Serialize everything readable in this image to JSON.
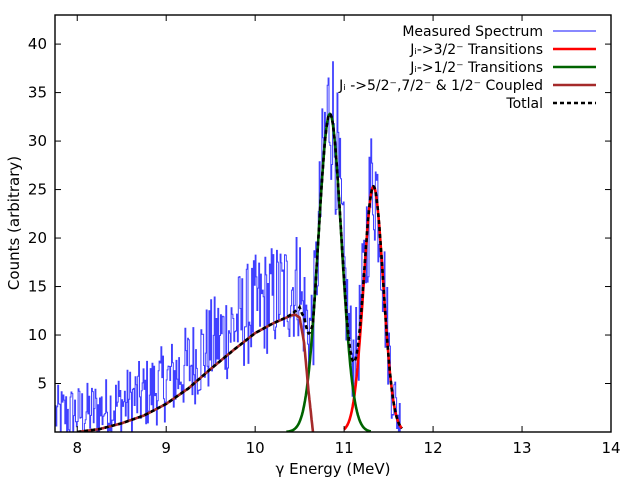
{
  "chart_data": {
    "type": "line",
    "title": "",
    "xlabel": "γ Energy (MeV)",
    "ylabel": "Counts (arbitrary)",
    "xlim": [
      7.75,
      14.0
    ],
    "ylim": [
      0,
      43
    ],
    "xticks": [
      8,
      9,
      10,
      11,
      12,
      13,
      14
    ],
    "yticks": [
      5,
      10,
      15,
      20,
      25,
      30,
      35,
      40
    ],
    "xtick_labels": [
      "8",
      "9",
      "10",
      "11",
      "12",
      "13",
      "14"
    ],
    "ytick_labels": [
      "5",
      "10",
      "15",
      "20",
      "25",
      "30",
      "35",
      "40"
    ],
    "legend": {
      "placement": "top-right",
      "entries": [
        {
          "label": "Measured Spectrum",
          "color": "#4040ff",
          "style": "solid"
        },
        {
          "label": "Jᵢ->3/2⁻ Transitions",
          "color": "#ff0000",
          "style": "solid"
        },
        {
          "label": "Jᵢ->1/2⁻ Transitions",
          "color": "#006400",
          "style": "solid"
        },
        {
          "label": "Jᵢ ->5/2⁻,7/2⁻ & 1/2⁻ Coupled",
          "color": "#a52a2a",
          "style": "solid"
        },
        {
          "label": "Totlal",
          "color": "#000000",
          "style": "dashed"
        }
      ]
    },
    "series": [
      {
        "name": "Jᵢ->3/2⁻ Transitions",
        "kind": "gaussian",
        "color": "#ff0000",
        "amplitude": 25.3,
        "center": 11.33,
        "sigma": 0.11,
        "x_range": [
          11.0,
          11.65
        ]
      },
      {
        "name": "Jᵢ->1/2⁻ Transitions",
        "kind": "gaussian",
        "color": "#006400",
        "amplitude": 32.8,
        "center": 10.84,
        "sigma": 0.13,
        "x_range": [
          10.35,
          11.3
        ]
      },
      {
        "name": "Jᵢ ->5/2⁻,7/2⁻ & 1/2⁻ Coupled",
        "kind": "line",
        "color": "#a52a2a",
        "x": [
          8.0,
          8.25,
          8.5,
          8.75,
          9.0,
          9.25,
          9.5,
          9.75,
          10.0,
          10.2,
          10.4,
          10.45,
          10.5,
          10.55,
          10.6,
          10.65
        ],
        "y": [
          0.0,
          0.3,
          0.9,
          1.7,
          2.9,
          4.5,
          6.5,
          8.4,
          10.2,
          11.2,
          12.0,
          12.1,
          11.8,
          9.2,
          4.2,
          0.0
        ]
      },
      {
        "name": "Measured Spectrum",
        "kind": "noisy-step",
        "color": "#4040ff",
        "noise_scale": 0.27,
        "x_range": [
          7.75,
          11.65
        ],
        "bin_width": 0.01
      }
    ]
  }
}
